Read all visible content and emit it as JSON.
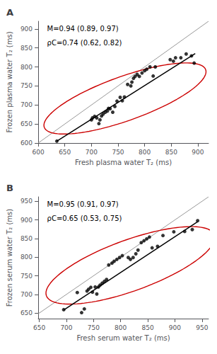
{
  "chart_data": [
    {
      "type": "scatter",
      "title": "A",
      "xlabel": "Fresh plasma water T₂ (ms)",
      "ylabel": "Frozen plasma water T₂ (ms)",
      "annotations": [
        "M=0.94 (0.89, 0.97)",
        "ρC=0.74 (0.62, 0.82)"
      ],
      "x": [
        635,
        700,
        702,
        706,
        710,
        714,
        716,
        719,
        722,
        726,
        730,
        732,
        735,
        740,
        744,
        748,
        754,
        758,
        762,
        768,
        774,
        776,
        779,
        782,
        786,
        790,
        795,
        800,
        804,
        810,
        816,
        820,
        848,
        854,
        858,
        868,
        878,
        888,
        893
      ],
      "values": [
        605,
        661,
        666,
        670,
        666,
        651,
        661,
        671,
        676,
        681,
        684,
        691,
        690,
        681,
        696,
        710,
        720,
        711,
        721,
        754,
        750,
        760,
        770,
        775,
        780,
        775,
        784,
        790,
        794,
        800,
        776,
        800,
        819,
        815,
        824,
        824,
        834,
        829,
        810
      ],
      "color": "#000000",
      "regression_line": {
        "x": [
          635,
          895
        ],
        "y": [
          605,
          835
        ],
        "color": "#000000"
      },
      "identity_line": {
        "x": [
          600,
          920
        ],
        "y": [
          600,
          920
        ],
        "color": "#999999"
      },
      "ellipse": {
        "cx": 763,
        "cy": 717,
        "width": 340,
        "height": 110,
        "angle": 28,
        "color": "#cc0000"
      },
      "xlim": [
        600,
        920
      ],
      "ylim": [
        600,
        920
      ],
      "xticks": [
        600,
        650,
        700,
        750,
        800,
        850,
        900
      ],
      "yticks": [
        600,
        650,
        700,
        750,
        800,
        850,
        900
      ],
      "grid": false
    },
    {
      "type": "scatter",
      "title": "B",
      "xlabel": "Fresh serum water T₂ (ms)",
      "ylabel": "Frozen serum water T₂ (ms)",
      "annotations": [
        "M=0.95 (0.91, 0.97)",
        "ρC=0.65 (0.53, 0.75)"
      ],
      "x": [
        695,
        720,
        728,
        733,
        738,
        741,
        745,
        748,
        753,
        756,
        759,
        762,
        766,
        770,
        774,
        778,
        784,
        788,
        793,
        798,
        803,
        814,
        818,
        823,
        828,
        832,
        838,
        843,
        848,
        853,
        858,
        868,
        878,
        898,
        918,
        932,
        942
      ],
      "values": [
        659,
        705,
        651,
        661,
        709,
        714,
        719,
        706,
        720,
        701,
        720,
        725,
        730,
        735,
        740,
        779,
        784,
        789,
        794,
        799,
        804,
        799,
        794,
        799,
        809,
        819,
        839,
        844,
        849,
        854,
        825,
        829,
        858,
        868,
        869,
        874,
        898
      ],
      "color": "#000000",
      "regression_line": {
        "x": [
          695,
          942
        ],
        "y": [
          658,
          895
        ],
        "color": "#000000"
      },
      "identity_line": {
        "x": [
          648,
          962
        ],
        "y": [
          648,
          962
        ],
        "color": "#999999"
      },
      "ellipse": {
        "cx": 818,
        "cy": 778,
        "width": 352,
        "height": 128,
        "angle": 30,
        "color": "#cc0000"
      },
      "xlim": [
        648,
        962
      ],
      "ylim": [
        635,
        962
      ],
      "xticks": [
        650,
        700,
        750,
        800,
        850,
        900,
        950
      ],
      "yticks": [
        650,
        700,
        750,
        800,
        850,
        900,
        950
      ],
      "grid": false
    }
  ]
}
